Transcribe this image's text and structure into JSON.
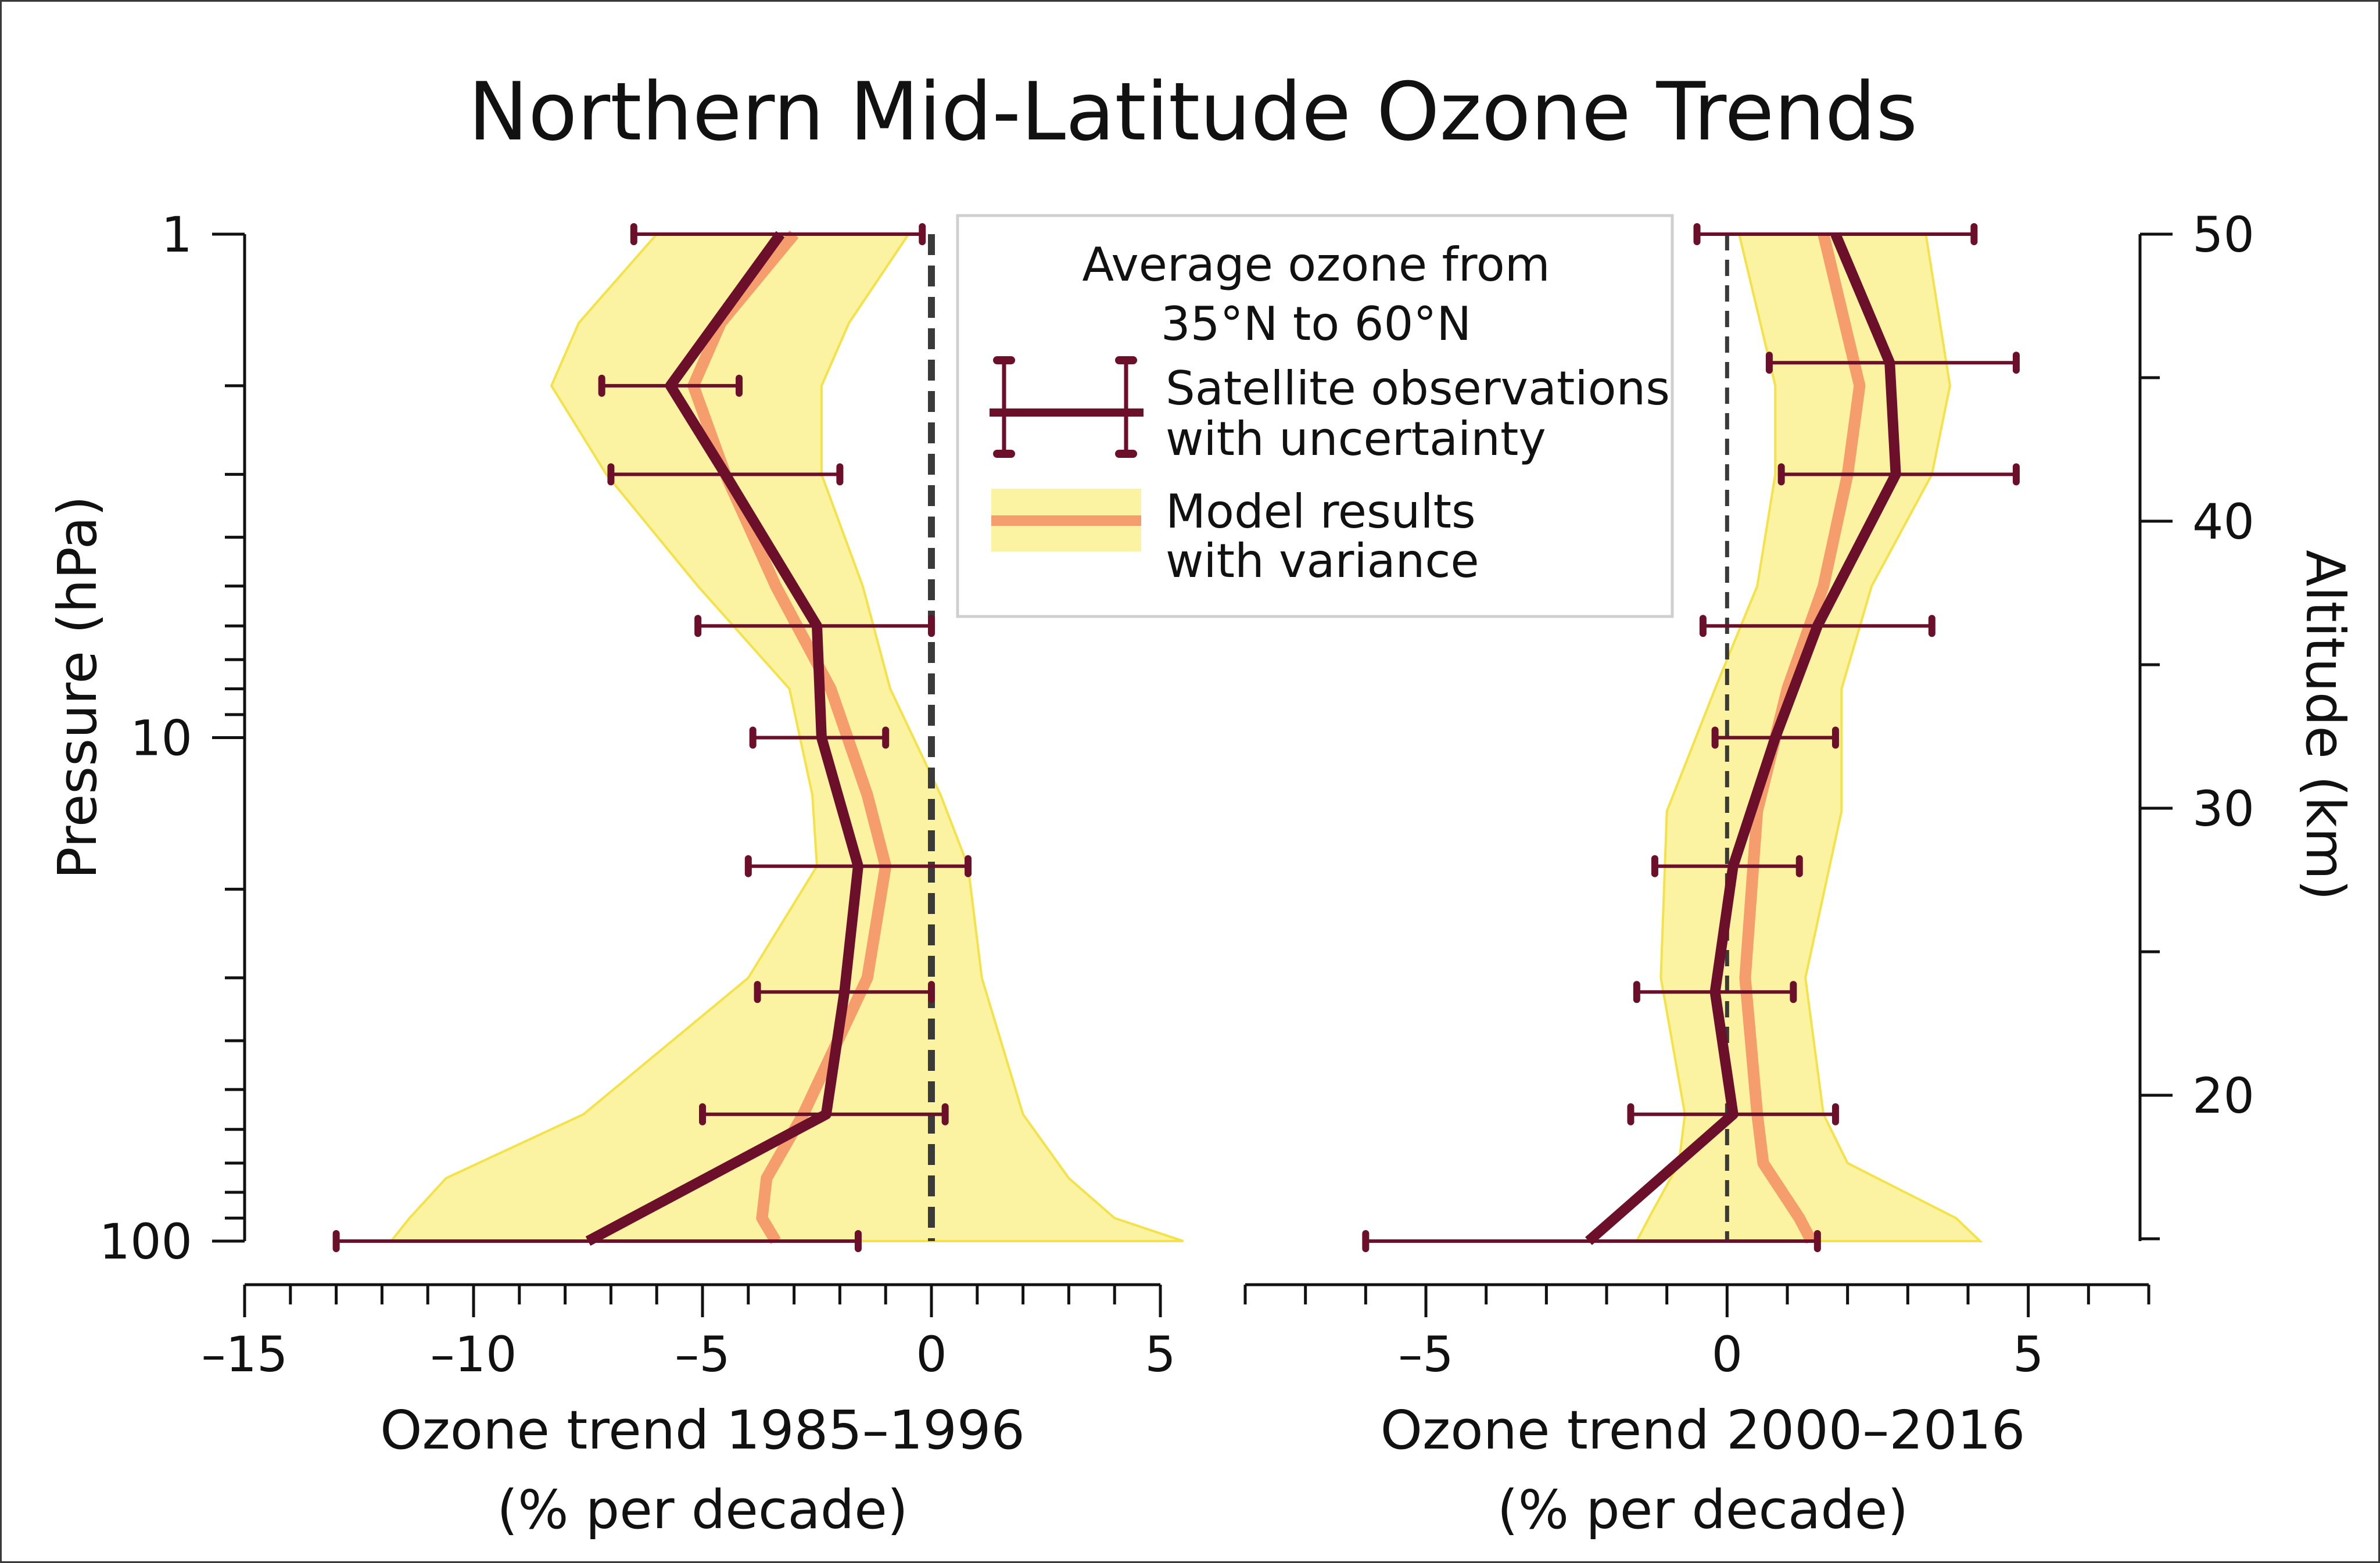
{
  "chart_data": {
    "type": "line",
    "title": "Northern Mid-Latitude Ozone Trends",
    "y_left": {
      "label": "Pressure (hPa)",
      "scale": "log",
      "reversed": true,
      "range": [
        1,
        100
      ],
      "tick_labels": [
        "1",
        "10",
        "100"
      ]
    },
    "y_right": {
      "label": "Altitude (km)",
      "range": [
        15,
        50
      ],
      "tick_labels": [
        "20",
        "30",
        "40",
        "50"
      ]
    },
    "legend": {
      "placement": "top-center",
      "heading_1": "Average ozone from",
      "heading_2": "35°N to 60°N",
      "obs_label_1": "Satellite observations",
      "obs_label_2": "with uncertainty",
      "model_label_1": "Model results",
      "model_label_2": "with variance"
    },
    "colors": {
      "observations": "#6b0f2b",
      "model_line": "#f59d6c",
      "model_band": "#fbf3a2",
      "model_band_edge": "#f4e24a",
      "zero_line": "#3a3a3a"
    },
    "panels": [
      {
        "xlabel_1": "Ozone trend 1985–1996",
        "xlabel_2": "(% per decade)",
        "xlim": [
          -15,
          5
        ],
        "tick_labels": [
          "–15",
          "–10",
          "–5",
          "0",
          "5"
        ],
        "observations": [
          {
            "pressure": 1,
            "trend": -3.3,
            "low": -6.5,
            "high": -0.2
          },
          {
            "pressure": 2,
            "trend": -5.7,
            "low": -7.2,
            "high": -4.2
          },
          {
            "pressure": 3,
            "trend": -4.5,
            "low": -7.0,
            "high": -2.0
          },
          {
            "pressure": 6,
            "trend": -2.5,
            "low": -5.1,
            "high": 0.0
          },
          {
            "pressure": 10,
            "trend": -2.4,
            "low": -3.9,
            "high": -1.0
          },
          {
            "pressure": 18,
            "trend": -1.6,
            "low": -4.0,
            "high": 0.8
          },
          {
            "pressure": 32,
            "trend": -1.9,
            "low": -3.8,
            "high": 0.0
          },
          {
            "pressure": 56,
            "trend": -2.3,
            "low": -5.0,
            "high": 0.3
          },
          {
            "pressure": 100,
            "trend": -7.5,
            "low": -13.0,
            "high": -1.6
          }
        ],
        "model": [
          {
            "pressure": 1,
            "mean": -3.0,
            "low": -6.0,
            "high": -0.5
          },
          {
            "pressure": 1.5,
            "mean": -4.6,
            "low": -7.7,
            "high": -1.8
          },
          {
            "pressure": 2,
            "mean": -5.2,
            "low": -8.3,
            "high": -2.4
          },
          {
            "pressure": 3,
            "mean": -4.5,
            "low": -7.1,
            "high": -2.4
          },
          {
            "pressure": 5,
            "mean": -3.4,
            "low": -5.1,
            "high": -1.5
          },
          {
            "pressure": 8,
            "mean": -2.2,
            "low": -3.1,
            "high": -0.9
          },
          {
            "pressure": 13,
            "mean": -1.4,
            "low": -2.6,
            "high": 0.2
          },
          {
            "pressure": 18,
            "mean": -1.0,
            "low": -2.5,
            "high": 0.8
          },
          {
            "pressure": 30,
            "mean": -1.4,
            "low": -4.0,
            "high": 1.1
          },
          {
            "pressure": 56,
            "mean": -2.8,
            "low": -7.6,
            "high": 2.0
          },
          {
            "pressure": 75,
            "mean": -3.6,
            "low": -10.6,
            "high": 3.0
          },
          {
            "pressure": 90,
            "mean": -3.7,
            "low": -11.4,
            "high": 4.0
          },
          {
            "pressure": 100,
            "mean": -3.4,
            "low": -11.8,
            "high": 5.5
          }
        ]
      },
      {
        "xlabel_1": "Ozone trend 2000–2016",
        "xlabel_2": "(% per decade)",
        "xlim": [
          -8,
          7
        ],
        "tick_labels": [
          "–5",
          "0",
          "5"
        ],
        "observations": [
          {
            "pressure": 1,
            "trend": 1.8,
            "low": -0.5,
            "high": 4.1
          },
          {
            "pressure": 1.8,
            "trend": 2.7,
            "low": 0.7,
            "high": 4.8
          },
          {
            "pressure": 3,
            "trend": 2.8,
            "low": 0.9,
            "high": 4.8
          },
          {
            "pressure": 6,
            "trend": 1.5,
            "low": -0.4,
            "high": 3.4
          },
          {
            "pressure": 10,
            "trend": 0.8,
            "low": -0.2,
            "high": 1.8
          },
          {
            "pressure": 18,
            "trend": 0.1,
            "low": -1.2,
            "high": 1.2
          },
          {
            "pressure": 32,
            "trend": -0.2,
            "low": -1.5,
            "high": 1.1
          },
          {
            "pressure": 56,
            "trend": 0.1,
            "low": -1.6,
            "high": 1.8
          },
          {
            "pressure": 100,
            "trend": -2.3,
            "low": -6.0,
            "high": 1.5
          }
        ],
        "model": [
          {
            "pressure": 1,
            "mean": 1.6,
            "low": 0.2,
            "high": 3.3
          },
          {
            "pressure": 2,
            "mean": 2.2,
            "low": 0.8,
            "high": 3.7
          },
          {
            "pressure": 3,
            "mean": 2.0,
            "low": 0.8,
            "high": 3.4
          },
          {
            "pressure": 5,
            "mean": 1.6,
            "low": 0.5,
            "high": 2.4
          },
          {
            "pressure": 8,
            "mean": 1.0,
            "low": -0.2,
            "high": 1.9
          },
          {
            "pressure": 14,
            "mean": 0.5,
            "low": -1.0,
            "high": 1.9
          },
          {
            "pressure": 30,
            "mean": 0.3,
            "low": -1.1,
            "high": 1.3
          },
          {
            "pressure": 56,
            "mean": 0.5,
            "low": -0.7,
            "high": 1.6
          },
          {
            "pressure": 70,
            "mean": 0.6,
            "low": -0.8,
            "high": 2.0
          },
          {
            "pressure": 90,
            "mean": 1.2,
            "low": -1.3,
            "high": 3.8
          },
          {
            "pressure": 100,
            "mean": 1.4,
            "low": -1.5,
            "high": 4.2
          }
        ]
      }
    ]
  }
}
